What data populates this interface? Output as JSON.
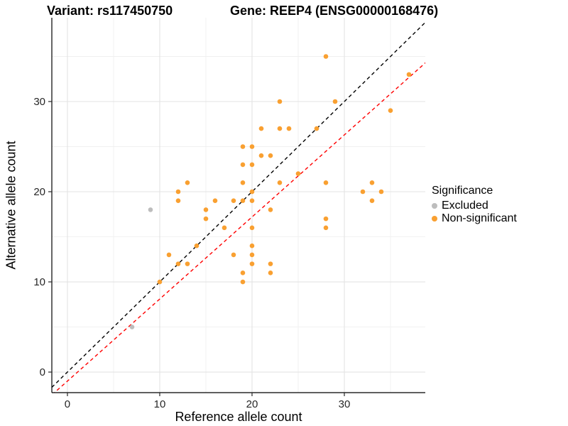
{
  "titles": {
    "left": "Variant: rs117450750",
    "right": "Gene: REEP4 (ENSG00000168476)"
  },
  "axes": {
    "x_label": "Reference allele count",
    "y_label": "Alternative allele count"
  },
  "legend": {
    "title": "Significance",
    "items": [
      {
        "label": "Excluded",
        "color": "#BDBDBD"
      },
      {
        "label": "Non-significant",
        "color": "#F9A031"
      }
    ]
  },
  "chart_data": {
    "type": "scatter",
    "title": "Variant: rs117450750 / Gene: REEP4 (ENSG00000168476)",
    "xlabel": "Reference allele count",
    "ylabel": "Alternative allele count",
    "xlim": [
      -1.69,
      38.77
    ],
    "ylim": [
      -2.28,
      39.29
    ],
    "x_ticks": [
      0,
      10,
      20,
      30
    ],
    "y_ticks": [
      0,
      10,
      20,
      30
    ],
    "x_minor_ticks": [
      5,
      15,
      25,
      35
    ],
    "y_minor_ticks": [
      5,
      15,
      25,
      35
    ],
    "grid": true,
    "legend_position": "right",
    "series": [
      {
        "name": "Excluded",
        "color": "#BDBDBD",
        "points": [
          [
            9,
            18
          ],
          [
            7,
            5
          ]
        ]
      },
      {
        "name": "Non-significant",
        "color": "#F9A031",
        "points": [
          [
            28,
            35
          ],
          [
            37,
            33
          ],
          [
            23,
            30
          ],
          [
            29,
            30
          ],
          [
            35,
            29
          ],
          [
            21,
            27
          ],
          [
            23,
            27
          ],
          [
            24,
            27
          ],
          [
            27,
            27
          ],
          [
            19,
            25
          ],
          [
            20,
            25
          ],
          [
            21,
            24
          ],
          [
            22,
            24
          ],
          [
            19,
            23
          ],
          [
            20,
            23
          ],
          [
            25,
            22
          ],
          [
            13,
            21
          ],
          [
            19,
            21
          ],
          [
            23,
            21
          ],
          [
            28,
            21
          ],
          [
            33,
            21
          ],
          [
            12,
            20
          ],
          [
            20,
            20
          ],
          [
            32,
            20
          ],
          [
            34,
            20
          ],
          [
            12,
            19
          ],
          [
            16,
            19
          ],
          [
            18,
            19
          ],
          [
            19,
            19
          ],
          [
            20,
            19
          ],
          [
            33,
            19
          ],
          [
            15,
            18
          ],
          [
            22,
            18
          ],
          [
            15,
            17
          ],
          [
            28,
            17
          ],
          [
            17,
            16
          ],
          [
            20,
            16
          ],
          [
            28,
            16
          ],
          [
            14,
            14
          ],
          [
            20,
            14
          ],
          [
            11,
            13
          ],
          [
            18,
            13
          ],
          [
            20,
            13
          ],
          [
            12,
            12
          ],
          [
            13,
            12
          ],
          [
            20,
            12
          ],
          [
            22,
            12
          ],
          [
            19,
            11
          ],
          [
            22,
            11
          ],
          [
            10,
            10
          ],
          [
            19,
            10
          ]
        ]
      }
    ],
    "lines": [
      {
        "name": "identity-line",
        "style": "dashed",
        "color": "#000000",
        "slope": 1,
        "intercept": 0
      },
      {
        "name": "fit-line",
        "style": "dashed",
        "color": "#FF0000",
        "slope": 0.91,
        "intercept": -1
      }
    ]
  }
}
